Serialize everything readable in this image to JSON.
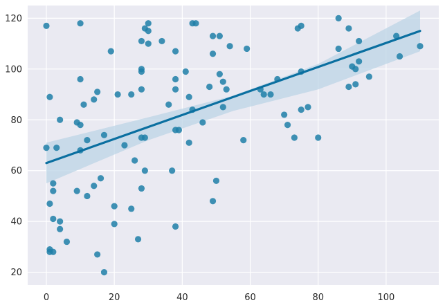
{
  "chart_data": {
    "type": "scatter",
    "title": "",
    "xlabel": "",
    "ylabel": "",
    "xlim": [
      -5.5,
      115.5
    ],
    "ylim": [
      15,
      125
    ],
    "x_ticks": [
      0,
      20,
      40,
      60,
      80,
      100
    ],
    "y_ticks": [
      20,
      40,
      60,
      80,
      100,
      120
    ],
    "grid": true,
    "colors": {
      "background": "#eaeaf2",
      "grid": "#ffffff",
      "point": "#1f7fa8",
      "line": "#0a6fa0",
      "band": "#bcd4e6"
    },
    "points": [
      {
        "x": 0,
        "y": 117
      },
      {
        "x": 0,
        "y": 69
      },
      {
        "x": 1,
        "y": 89
      },
      {
        "x": 1,
        "y": 47
      },
      {
        "x": 1,
        "y": 29
      },
      {
        "x": 1,
        "y": 28
      },
      {
        "x": 2,
        "y": 55
      },
      {
        "x": 2,
        "y": 52
      },
      {
        "x": 2,
        "y": 41
      },
      {
        "x": 2,
        "y": 28
      },
      {
        "x": 3,
        "y": 69
      },
      {
        "x": 4,
        "y": 80
      },
      {
        "x": 4,
        "y": 40
      },
      {
        "x": 4,
        "y": 37
      },
      {
        "x": 6,
        "y": 32
      },
      {
        "x": 9,
        "y": 79
      },
      {
        "x": 9,
        "y": 52
      },
      {
        "x": 10,
        "y": 118
      },
      {
        "x": 10,
        "y": 96
      },
      {
        "x": 10,
        "y": 78
      },
      {
        "x": 10,
        "y": 68
      },
      {
        "x": 11,
        "y": 86
      },
      {
        "x": 12,
        "y": 72
      },
      {
        "x": 12,
        "y": 50
      },
      {
        "x": 14,
        "y": 88
      },
      {
        "x": 14,
        "y": 54
      },
      {
        "x": 15,
        "y": 91
      },
      {
        "x": 15,
        "y": 27
      },
      {
        "x": 16,
        "y": 57
      },
      {
        "x": 17,
        "y": 74
      },
      {
        "x": 17,
        "y": 20
      },
      {
        "x": 19,
        "y": 107
      },
      {
        "x": 20,
        "y": 46
      },
      {
        "x": 20,
        "y": 39
      },
      {
        "x": 21,
        "y": 90
      },
      {
        "x": 23,
        "y": 70
      },
      {
        "x": 25,
        "y": 90
      },
      {
        "x": 25,
        "y": 45
      },
      {
        "x": 26,
        "y": 64
      },
      {
        "x": 27,
        "y": 33
      },
      {
        "x": 28,
        "y": 111
      },
      {
        "x": 28,
        "y": 100
      },
      {
        "x": 28,
        "y": 99
      },
      {
        "x": 28,
        "y": 92
      },
      {
        "x": 28,
        "y": 73
      },
      {
        "x": 28,
        "y": 53
      },
      {
        "x": 29,
        "y": 116
      },
      {
        "x": 29,
        "y": 73
      },
      {
        "x": 29,
        "y": 60
      },
      {
        "x": 30,
        "y": 118
      },
      {
        "x": 30,
        "y": 115
      },
      {
        "x": 30,
        "y": 110
      },
      {
        "x": 34,
        "y": 111
      },
      {
        "x": 36,
        "y": 86
      },
      {
        "x": 37,
        "y": 60
      },
      {
        "x": 38,
        "y": 107
      },
      {
        "x": 38,
        "y": 96
      },
      {
        "x": 38,
        "y": 92
      },
      {
        "x": 38,
        "y": 76
      },
      {
        "x": 38,
        "y": 38
      },
      {
        "x": 39,
        "y": 76
      },
      {
        "x": 41,
        "y": 99
      },
      {
        "x": 42,
        "y": 89
      },
      {
        "x": 42,
        "y": 71
      },
      {
        "x": 43,
        "y": 118
      },
      {
        "x": 43,
        "y": 84
      },
      {
        "x": 44,
        "y": 118
      },
      {
        "x": 46,
        "y": 79
      },
      {
        "x": 48,
        "y": 93
      },
      {
        "x": 49,
        "y": 113
      },
      {
        "x": 49,
        "y": 106
      },
      {
        "x": 49,
        "y": 48
      },
      {
        "x": 50,
        "y": 56
      },
      {
        "x": 51,
        "y": 113
      },
      {
        "x": 51,
        "y": 98
      },
      {
        "x": 52,
        "y": 95
      },
      {
        "x": 52,
        "y": 85
      },
      {
        "x": 53,
        "y": 92
      },
      {
        "x": 54,
        "y": 109
      },
      {
        "x": 58,
        "y": 72
      },
      {
        "x": 59,
        "y": 108
      },
      {
        "x": 63,
        "y": 92
      },
      {
        "x": 64,
        "y": 90
      },
      {
        "x": 66,
        "y": 90
      },
      {
        "x": 68,
        "y": 96
      },
      {
        "x": 70,
        "y": 82
      },
      {
        "x": 71,
        "y": 78
      },
      {
        "x": 73,
        "y": 73
      },
      {
        "x": 74,
        "y": 116
      },
      {
        "x": 75,
        "y": 117
      },
      {
        "x": 75,
        "y": 99
      },
      {
        "x": 75,
        "y": 84
      },
      {
        "x": 77,
        "y": 85
      },
      {
        "x": 80,
        "y": 73
      },
      {
        "x": 86,
        "y": 120
      },
      {
        "x": 86,
        "y": 108
      },
      {
        "x": 89,
        "y": 116
      },
      {
        "x": 89,
        "y": 93
      },
      {
        "x": 90,
        "y": 101
      },
      {
        "x": 91,
        "y": 100
      },
      {
        "x": 91,
        "y": 94
      },
      {
        "x": 92,
        "y": 111
      },
      {
        "x": 92,
        "y": 103
      },
      {
        "x": 95,
        "y": 97
      },
      {
        "x": 103,
        "y": 113
      },
      {
        "x": 104,
        "y": 105
      },
      {
        "x": 110,
        "y": 109
      }
    ],
    "regression": {
      "x_range": [
        0,
        110
      ],
      "y_start": 63,
      "y_end": 115,
      "ci_upper": [
        [
          0,
          71
        ],
        [
          30,
          81
        ],
        [
          55,
          89.5
        ],
        [
          80,
          102
        ],
        [
          110,
          123
        ]
      ],
      "ci_lower": [
        [
          0,
          55
        ],
        [
          30,
          72
        ],
        [
          55,
          83.5
        ],
        [
          80,
          92
        ],
        [
          110,
          107
        ]
      ]
    }
  }
}
